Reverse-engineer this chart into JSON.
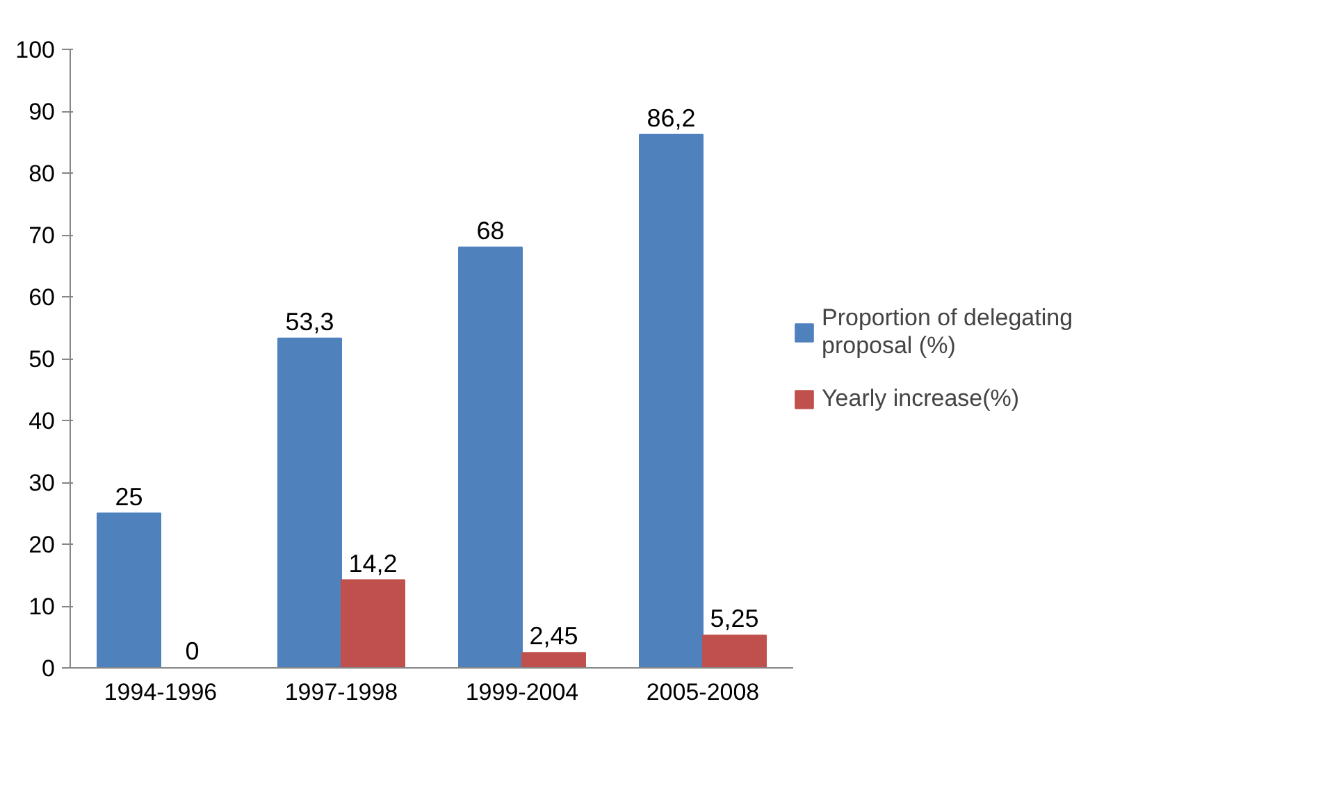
{
  "chart_data": {
    "type": "bar",
    "categories": [
      "1994-1996",
      "1997-1998",
      "1999-2004",
      "2005-2008"
    ],
    "series": [
      {
        "name": "Proportion of delegating proposal (%)",
        "color": "#4f81bd",
        "values": [
          25,
          53.3,
          68,
          86.2
        ],
        "value_labels": [
          "25",
          "53,3",
          "68",
          "86,2"
        ]
      },
      {
        "name": "Yearly increase(%)",
        "color": "#c0504d",
        "values": [
          0,
          14.2,
          2.45,
          5.25
        ],
        "value_labels": [
          "0",
          "14,2",
          "2,45",
          "5,25"
        ]
      }
    ],
    "ylim": [
      0,
      100
    ],
    "yticks": [
      0,
      10,
      20,
      30,
      40,
      50,
      60,
      70,
      80,
      90,
      100
    ],
    "grid": false,
    "legend": "right"
  }
}
